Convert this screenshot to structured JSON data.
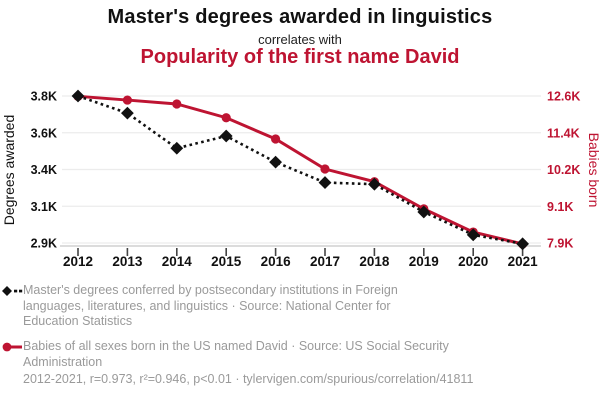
{
  "title": "Master's degrees awarded in linguistics",
  "subtitle": "correlates with",
  "title_secondary": "Popularity of the first name David",
  "colors": {
    "accent_red": "#be1432",
    "series_black": "#111111",
    "legend_gray": "#9a9a9a",
    "gridline": "#ececec",
    "axis_line": "#c8c8c8",
    "tick_mark": "#444444"
  },
  "chart_data": {
    "type": "line",
    "x": [
      2012,
      2013,
      2014,
      2015,
      2016,
      2017,
      2018,
      2019,
      2020,
      2021
    ],
    "x_tick_labels": [
      "2012",
      "2013",
      "2014",
      "2015",
      "2016",
      "2017",
      "2018",
      "2019",
      "2020",
      "2021"
    ],
    "grid": "horizontal",
    "series": [
      {
        "name": "Master's degrees awarded in linguistics",
        "axis": "left",
        "color": "#111111",
        "line_style": "dotted",
        "marker": "diamond",
        "values": [
          3800,
          3695,
          3480,
          3555,
          3395,
          3270,
          3260,
          3090,
          2950,
          2895
        ]
      },
      {
        "name": "Babies born in the US named David",
        "axis": "right",
        "color": "#be1432",
        "line_style": "solid",
        "marker": "circle",
        "values": [
          12590,
          12470,
          12345,
          11905,
          11225,
          10265,
          9860,
          8990,
          8250,
          7870
        ]
      }
    ],
    "left_axis": {
      "label": "Degrees awarded",
      "min": 2900,
      "max": 3800,
      "ticks": [
        {
          "value": 3800,
          "label": "3.8K"
        },
        {
          "value": 3575,
          "label": "3.6K"
        },
        {
          "value": 3350,
          "label": "3.4K"
        },
        {
          "value": 3125,
          "label": "3.1K"
        },
        {
          "value": 2900,
          "label": "2.9K"
        }
      ]
    },
    "right_axis": {
      "label": "Babies born",
      "min": 7900,
      "max": 12600,
      "ticks": [
        {
          "value": 12600,
          "label": "12.6K"
        },
        {
          "value": 11425,
          "label": "11.4K"
        },
        {
          "value": 10250,
          "label": "10.2K"
        },
        {
          "value": 9075,
          "label": "9.1K"
        },
        {
          "value": 7900,
          "label": "7.9K"
        }
      ]
    }
  },
  "legend": [
    {
      "marker": "black-diamond-dotted-line",
      "text": "Master's degrees conferred by postsecondary institutions in Foreign\nlanguages, literatures, and linguistics · Source: National Center for\nEducation Statistics"
    },
    {
      "marker": "red-circle-solid-line",
      "text": "Babies of all sexes born in the US named David · Source: US Social Security\nAdministration"
    }
  ],
  "footer": "2012-2021, r=0.973, r²=0.946, p<0.01 · tylervigen.com/spurious/correlation/41811"
}
